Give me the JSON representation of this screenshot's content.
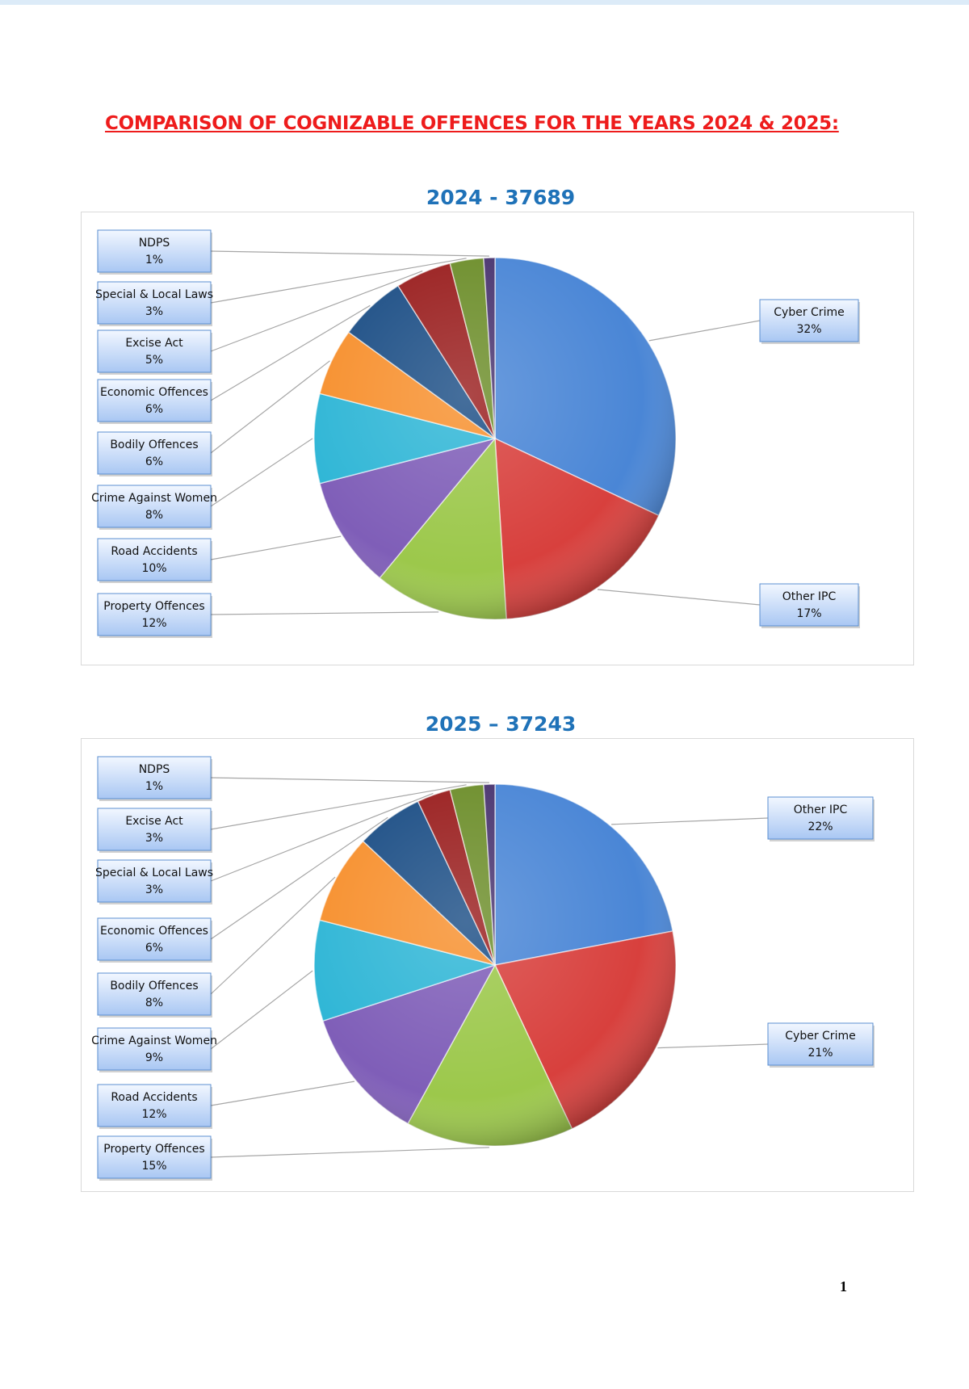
{
  "page": {
    "title": "COMPARISON OF COGNIZABLE OFFENCES FOR THE YEARS 2024 & 2025:",
    "page_number": "1"
  },
  "colors": {
    "title": "#ee1c1c",
    "chart_title": "#1f72b8",
    "label_fill_top": "#f2f7ff",
    "label_fill_bottom": "#a9c7f3",
    "label_border": "#5b8fd0",
    "leader_line": "#a6a6a6"
  },
  "chart_data": [
    {
      "type": "pie",
      "title": "2024 - 37689",
      "slices": [
        {
          "label": "Cyber Crime",
          "value": 32,
          "value_label": "32%",
          "color": "#4a86d6"
        },
        {
          "label": "Other IPC",
          "value": 17,
          "value_label": "17%",
          "color": "#d8403d"
        },
        {
          "label": "Property Offences",
          "value": 12,
          "value_label": "12%",
          "color": "#9cc84b"
        },
        {
          "label": "Road Accidents",
          "value": 10,
          "value_label": "10%",
          "color": "#7f5eb8"
        },
        {
          "label": "Crime Against Women",
          "value": 8,
          "value_label": "8%",
          "color": "#2fb6d6"
        },
        {
          "label": "Bodily Offences",
          "value": 6,
          "value_label": "6%",
          "color": "#f7902e"
        },
        {
          "label": "Economic Offences",
          "value": 6,
          "value_label": "6%",
          "color": "#1d4f86"
        },
        {
          "label": "Excise Act",
          "value": 5,
          "value_label": "5%",
          "color": "#9a1f1f"
        },
        {
          "label": "Special & Local Laws",
          "value": 3,
          "value_label": "3%",
          "color": "#6d8e2b"
        },
        {
          "label": "NDPS",
          "value": 1,
          "value_label": "1%",
          "color": "#4a3570"
        }
      ]
    },
    {
      "type": "pie",
      "title": "2025 – 37243",
      "slices": [
        {
          "label": "Other IPC",
          "value": 22,
          "value_label": "22%",
          "color": "#4a86d6"
        },
        {
          "label": "Cyber Crime",
          "value": 21,
          "value_label": "21%",
          "color": "#d8403d"
        },
        {
          "label": "Property Offences",
          "value": 15,
          "value_label": "15%",
          "color": "#9cc84b"
        },
        {
          "label": "Road Accidents",
          "value": 12,
          "value_label": "12%",
          "color": "#7f5eb8"
        },
        {
          "label": "Crime Against Women",
          "value": 9,
          "value_label": "9%",
          "color": "#2fb6d6"
        },
        {
          "label": "Bodily Offences",
          "value": 8,
          "value_label": "8%",
          "color": "#f7902e"
        },
        {
          "label": "Economic Offences",
          "value": 6,
          "value_label": "6%",
          "color": "#1d4f86"
        },
        {
          "label": "Special & Local Laws",
          "value": 3,
          "value_label": "3%",
          "color": "#9a1f1f"
        },
        {
          "label": "Excise Act",
          "value": 3,
          "value_label": "3%",
          "color": "#6d8e2b"
        },
        {
          "label": "NDPS",
          "value": 1,
          "value_label": "1%",
          "color": "#4a3570"
        }
      ]
    }
  ]
}
